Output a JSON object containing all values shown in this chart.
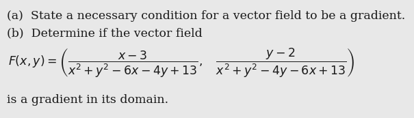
{
  "background_color": "#e8e8e8",
  "line1": "(a)  State a necessary condition for a vector field to be a gradient.",
  "line2": "(b)  Determine if the vector field",
  "line4": "is a gradient in its domain.",
  "text_color": "#1a1a1a",
  "fontsize_main": 12.5,
  "formula": "$F(x, y) = \\left(\\dfrac{x - 3}{x^2 + y^2 - 6x - 4y + 13},\\quad\\dfrac{y - 2}{x^2 + y^2 - 4y - 6x + 13}\\right)$"
}
